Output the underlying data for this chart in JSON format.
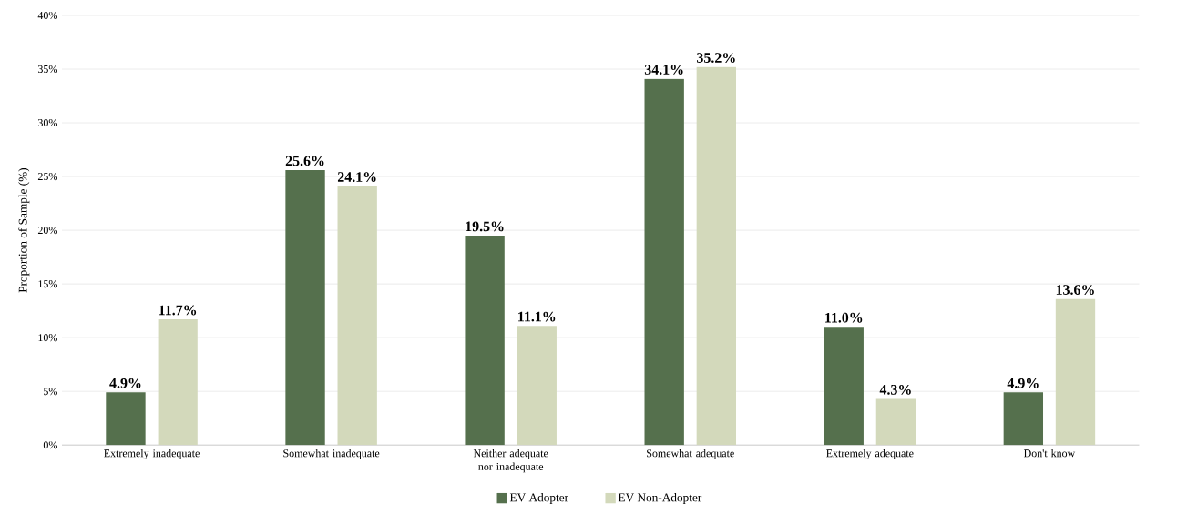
{
  "chart_data": {
    "type": "bar",
    "ylabel": "Proportion of Sample (%)",
    "categories": [
      "Extremely inadequate",
      "Somewhat inadequate",
      "Neither adequate nor inadequate",
      "Somewhat adequate",
      "Extremely adequate",
      "Don't know"
    ],
    "series": [
      {
        "name": "EV Adopter",
        "color": "#55704d",
        "values": [
          4.9,
          25.6,
          19.5,
          34.1,
          11.0,
          4.9
        ],
        "value_labels": [
          "4.9%",
          "25.6%",
          "19.5%",
          "34.1%",
          "11.0%",
          "4.9%"
        ]
      },
      {
        "name": "EV Non-Adopter",
        "color": "#d3d9bb",
        "values": [
          11.7,
          24.1,
          11.1,
          35.2,
          4.3,
          13.6
        ],
        "value_labels": [
          "11.7%",
          "24.1%",
          "11.1%",
          "35.2%",
          "4.3%",
          "13.6%"
        ]
      }
    ],
    "ylim": [
      0,
      40
    ],
    "yticks": [
      {
        "value": 0,
        "label": "0%"
      },
      {
        "value": 5,
        "label": "5%"
      },
      {
        "value": 10,
        "label": "10%"
      },
      {
        "value": 15,
        "label": "15%"
      },
      {
        "value": 20,
        "label": "20%"
      },
      {
        "value": 25,
        "label": "25%"
      },
      {
        "value": 30,
        "label": "30%"
      },
      {
        "value": 35,
        "label": "35%"
      },
      {
        "value": 40,
        "label": "40%"
      }
    ],
    "grid": "y",
    "legend": "bottom"
  }
}
